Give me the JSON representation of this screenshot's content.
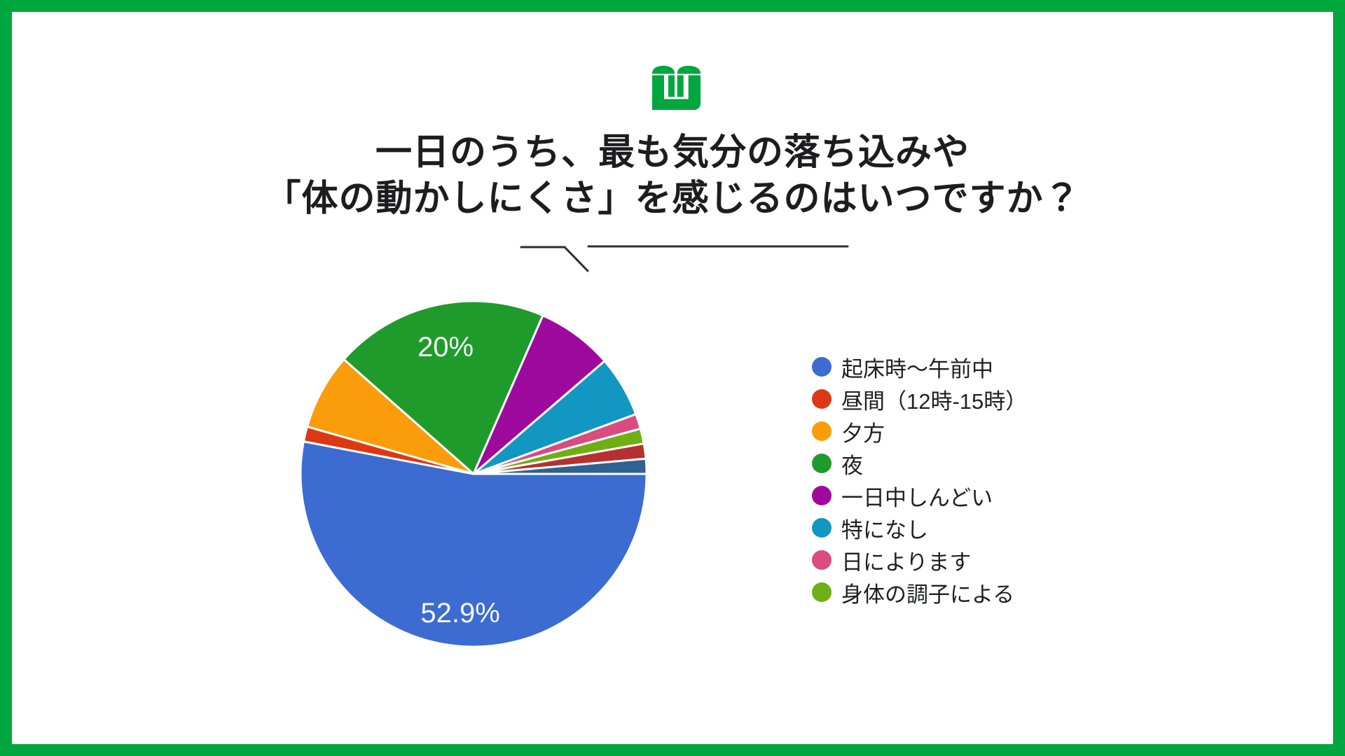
{
  "header": {
    "title_line1": "一日のうち、最も気分の落ち込みや",
    "title_line2": "「体の動かしにくさ」を感じるのはいつですか？"
  },
  "colors": {
    "frame": "#00A63E",
    "logo": "#00A63E",
    "title_text": "#1D1D1F",
    "divider": "#2E2E2E",
    "legend_text": "#1F2022",
    "pie_label_text": "#F6F8F3",
    "background": "#FFFFFF"
  },
  "chart_data": {
    "type": "pie",
    "title": "一日のうち、最も気分の落ち込みや「体の動かしにくさ」を感じるのはいつですか？",
    "legend_position": "right",
    "start_angle_deg_from_top": 90,
    "direction": "clockwise",
    "visible_data_labels": [
      "52.9%",
      "20%"
    ],
    "slices": [
      {
        "label": "起床時〜午前中",
        "percent": 52.9,
        "color": "#3C6BD2",
        "data_label": "52.9%",
        "label_r": 0.81,
        "in_legend": true
      },
      {
        "label": "昼間（12時-15時）",
        "percent": 1.4,
        "color": "#DC3912",
        "data_label": null,
        "label_r": null,
        "in_legend": true
      },
      {
        "label": "夕方",
        "percent": 7.1,
        "color": "#FB9C0B",
        "data_label": null,
        "label_r": null,
        "in_legend": true
      },
      {
        "label": "夜",
        "percent": 20.0,
        "color": "#1F9B2C",
        "data_label": "20%",
        "label_r": 0.75,
        "in_legend": true
      },
      {
        "label": "一日中しんどい",
        "percent": 7.1,
        "color": "#9E0A9E",
        "data_label": null,
        "label_r": null,
        "in_legend": true
      },
      {
        "label": "特になし",
        "percent": 5.7,
        "color": "#1297C2",
        "data_label": null,
        "label_r": null,
        "in_legend": true
      },
      {
        "label": "日によります",
        "percent": 1.4,
        "color": "#DA4B7F",
        "data_label": null,
        "label_r": null,
        "in_legend": true
      },
      {
        "label": "身体の調子による",
        "percent": 1.4,
        "color": "#6FAE14",
        "data_label": null,
        "label_r": null,
        "in_legend": true
      },
      {
        "label": "",
        "percent": 1.4,
        "color": "#B53030",
        "data_label": null,
        "label_r": null,
        "in_legend": false
      },
      {
        "label": "",
        "percent": 1.4,
        "color": "#2F6191",
        "data_label": null,
        "label_r": null,
        "in_legend": false
      }
    ]
  }
}
